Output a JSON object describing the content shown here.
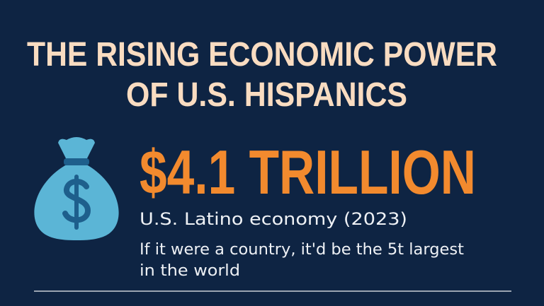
{
  "header": {
    "title_lines": [
      "THE RISING ECONOMIC POWER",
      "OF U.S. HISPANICS"
    ]
  },
  "stat": {
    "value": "$4.1 TRILLION",
    "label": "U.S. Latino economy (2023)",
    "description_lines": [
      "If it were a country, it'd be the 5t largest",
      "in the world"
    ]
  }
}
